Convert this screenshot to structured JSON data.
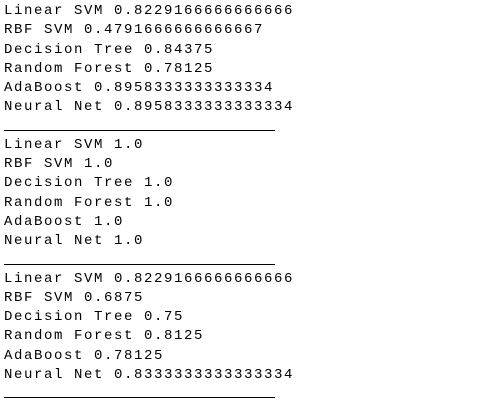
{
  "blocks": [
    {
      "lines": [
        "Linear SVM 0.8229166666666666",
        "RBF SVM 0.4791666666666667",
        "Decision Tree 0.84375",
        "Random Forest 0.78125",
        "AdaBoost 0.8958333333333334",
        "Neural Net 0.8958333333333334"
      ]
    },
    {
      "lines": [
        "Linear SVM 1.0",
        "RBF SVM 1.0",
        "Decision Tree 1.0",
        "Random Forest 1.0",
        "AdaBoost 1.0",
        "Neural Net 1.0"
      ]
    },
    {
      "lines": [
        "Linear SVM 0.8229166666666666",
        "RBF SVM 0.6875",
        "Decision Tree 0.75",
        "Random Forest 0.8125",
        "AdaBoost 0.78125",
        "Neural Net 0.8333333333333334"
      ]
    }
  ]
}
